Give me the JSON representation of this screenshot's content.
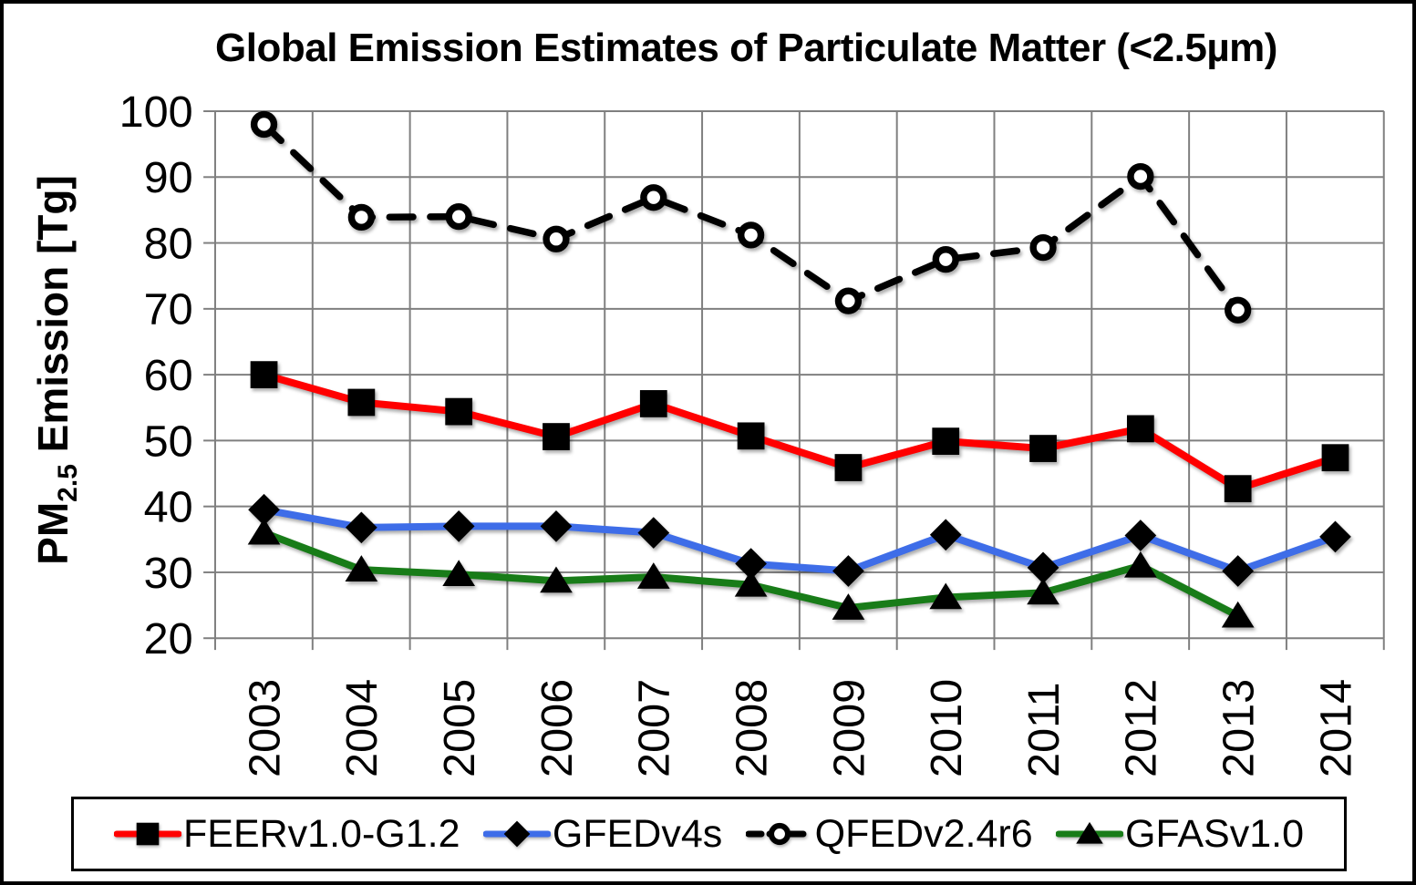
{
  "chart_data": {
    "type": "line",
    "title": "Global Emission Estimates of Particulate Matter (<2.5µm)",
    "ylabel": {
      "prefix": "PM",
      "subscript": "2.5",
      "suffix": " Emission [Tg]",
      "text": "PM2.5 Emission [Tg]"
    },
    "xlabel": "",
    "x": [
      "2003",
      "2004",
      "2005",
      "2006",
      "2007",
      "2008",
      "2009",
      "2010",
      "2011",
      "2012",
      "2013",
      "2014"
    ],
    "ylim": [
      20,
      100
    ],
    "yticks": [
      100,
      90,
      80,
      70,
      60,
      50,
      40,
      30,
      20
    ],
    "grid": true,
    "legend_position": "bottom",
    "colors": {
      "grid": "#7F7F7F",
      "axis": "#7F7F7F",
      "marker": "#000000",
      "background": "#FFFFFF",
      "frame_border": "#000000"
    },
    "series": [
      {
        "name": "FEERv1.0-G1.2",
        "color": "#FF0000",
        "line_style": "solid",
        "marker": "square",
        "values": [
          60.0,
          55.8,
          54.4,
          50.6,
          55.6,
          50.7,
          45.9,
          49.9,
          48.8,
          51.8,
          42.7,
          47.4
        ]
      },
      {
        "name": "GFEDv4s",
        "color": "#3E6DE8",
        "line_style": "solid",
        "marker": "diamond",
        "values": [
          39.5,
          36.8,
          37.0,
          37.0,
          36.0,
          31.3,
          30.2,
          35.7,
          30.7,
          35.6,
          30.2,
          35.4
        ]
      },
      {
        "name": "QFEDv2.4r6",
        "color": "#000000",
        "line_style": "dashed",
        "marker": "circle-open",
        "values": [
          98.0,
          83.9,
          84.0,
          80.6,
          86.9,
          81.2,
          71.2,
          77.5,
          79.3,
          90.1,
          69.8,
          null
        ]
      },
      {
        "name": "GFASv1.0",
        "color": "#187C18",
        "line_style": "solid",
        "marker": "triangle",
        "values": [
          36.0,
          30.4,
          29.7,
          28.7,
          29.3,
          28.1,
          24.6,
          26.2,
          26.9,
          31.0,
          23.4,
          null
        ]
      }
    ]
  }
}
